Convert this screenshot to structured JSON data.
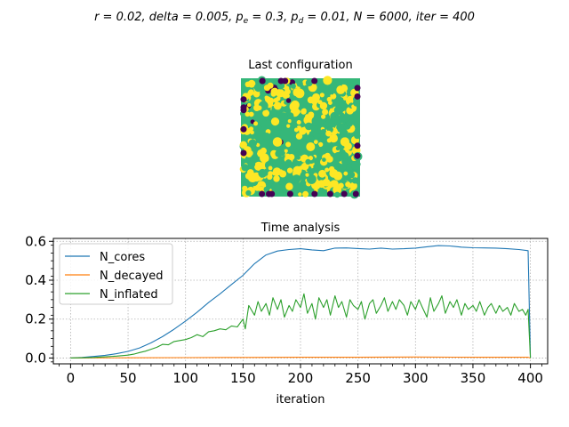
{
  "figure": {
    "suptitle": {
      "parts": [
        {
          "t": "r = 0.02, "
        },
        {
          "t": "delta = 0.005, "
        },
        {
          "t": "p",
          "sub": "e",
          "after": " = 0.3, "
        },
        {
          "t": "p",
          "sub": "d",
          "after": " = 0.01, "
        },
        {
          "t": "N = 6000, "
        },
        {
          "t": "iter = 400"
        }
      ]
    }
  },
  "chart_data": [
    {
      "type": "heatmap",
      "title": "Last configuration",
      "description_colors": {
        "empty": "#440154",
        "cores": "#fde725",
        "inflated": "#35b779"
      }
    },
    {
      "type": "line",
      "title": "Time analysis",
      "xlabel": "iteration",
      "ylabel": "",
      "xlim": [
        -15,
        415
      ],
      "ylim": [
        -0.03,
        0.615
      ],
      "xticks": [
        0,
        50,
        100,
        150,
        200,
        250,
        300,
        350,
        400
      ],
      "yticks": [
        0.0,
        0.2,
        0.4,
        0.6
      ],
      "ytick_labels": [
        "0.0",
        "0.2",
        "0.4",
        "0.6"
      ],
      "grid": true,
      "legend_position": "upper-left",
      "series": [
        {
          "name": "N_cores",
          "color": "#1f77b4",
          "x": [
            0,
            10,
            20,
            30,
            40,
            50,
            60,
            70,
            80,
            90,
            100,
            110,
            120,
            130,
            140,
            150,
            160,
            170,
            180,
            190,
            200,
            210,
            220,
            230,
            240,
            250,
            260,
            270,
            280,
            290,
            300,
            310,
            320,
            330,
            340,
            350,
            360,
            370,
            380,
            390,
            398,
            400
          ],
          "y": [
            0.0,
            0.003,
            0.008,
            0.014,
            0.022,
            0.034,
            0.052,
            0.078,
            0.11,
            0.148,
            0.19,
            0.235,
            0.285,
            0.33,
            0.378,
            0.425,
            0.485,
            0.53,
            0.55,
            0.558,
            0.562,
            0.556,
            0.552,
            0.565,
            0.566,
            0.563,
            0.56,
            0.565,
            0.56,
            0.562,
            0.565,
            0.572,
            0.578,
            0.576,
            0.57,
            0.567,
            0.566,
            0.565,
            0.562,
            0.558,
            0.552,
            0.0
          ]
        },
        {
          "name": "N_decayed",
          "color": "#ff7f0e",
          "x": [
            0,
            50,
            100,
            150,
            200,
            250,
            300,
            350,
            398,
            400
          ],
          "y": [
            0.0,
            0.001,
            0.002,
            0.003,
            0.004,
            0.004,
            0.005,
            0.004,
            0.004,
            0.0
          ]
        },
        {
          "name": "N_inflated",
          "color": "#2ca02c",
          "x": [
            0,
            10,
            20,
            30,
            40,
            50,
            55,
            60,
            65,
            70,
            75,
            80,
            85,
            90,
            95,
            100,
            105,
            110,
            115,
            120,
            125,
            130,
            135,
            140,
            145,
            150,
            152,
            155,
            160,
            163,
            166,
            170,
            173,
            176,
            180,
            183,
            186,
            190,
            193,
            196,
            200,
            203,
            206,
            210,
            213,
            216,
            220,
            223,
            226,
            230,
            233,
            236,
            240,
            243,
            246,
            250,
            253,
            256,
            260,
            263,
            266,
            270,
            273,
            276,
            280,
            283,
            286,
            290,
            293,
            296,
            300,
            303,
            306,
            310,
            313,
            316,
            320,
            323,
            326,
            330,
            333,
            336,
            340,
            343,
            346,
            350,
            353,
            356,
            360,
            363,
            366,
            370,
            373,
            376,
            380,
            383,
            386,
            390,
            393,
            396,
            398,
            400
          ],
          "y": [
            0.0,
            0.001,
            0.003,
            0.006,
            0.01,
            0.015,
            0.02,
            0.028,
            0.035,
            0.045,
            0.055,
            0.07,
            0.068,
            0.085,
            0.09,
            0.095,
            0.105,
            0.12,
            0.11,
            0.135,
            0.14,
            0.15,
            0.145,
            0.165,
            0.16,
            0.2,
            0.15,
            0.27,
            0.22,
            0.29,
            0.24,
            0.28,
            0.22,
            0.31,
            0.25,
            0.3,
            0.21,
            0.27,
            0.24,
            0.3,
            0.26,
            0.33,
            0.23,
            0.28,
            0.2,
            0.31,
            0.26,
            0.3,
            0.22,
            0.32,
            0.26,
            0.29,
            0.21,
            0.3,
            0.27,
            0.25,
            0.29,
            0.2,
            0.28,
            0.3,
            0.23,
            0.27,
            0.31,
            0.24,
            0.29,
            0.25,
            0.3,
            0.27,
            0.22,
            0.29,
            0.25,
            0.3,
            0.26,
            0.21,
            0.31,
            0.24,
            0.28,
            0.32,
            0.23,
            0.29,
            0.26,
            0.3,
            0.22,
            0.28,
            0.25,
            0.27,
            0.24,
            0.29,
            0.22,
            0.26,
            0.28,
            0.23,
            0.27,
            0.24,
            0.26,
            0.22,
            0.28,
            0.24,
            0.25,
            0.22,
            0.25,
            0.0
          ]
        }
      ]
    }
  ]
}
